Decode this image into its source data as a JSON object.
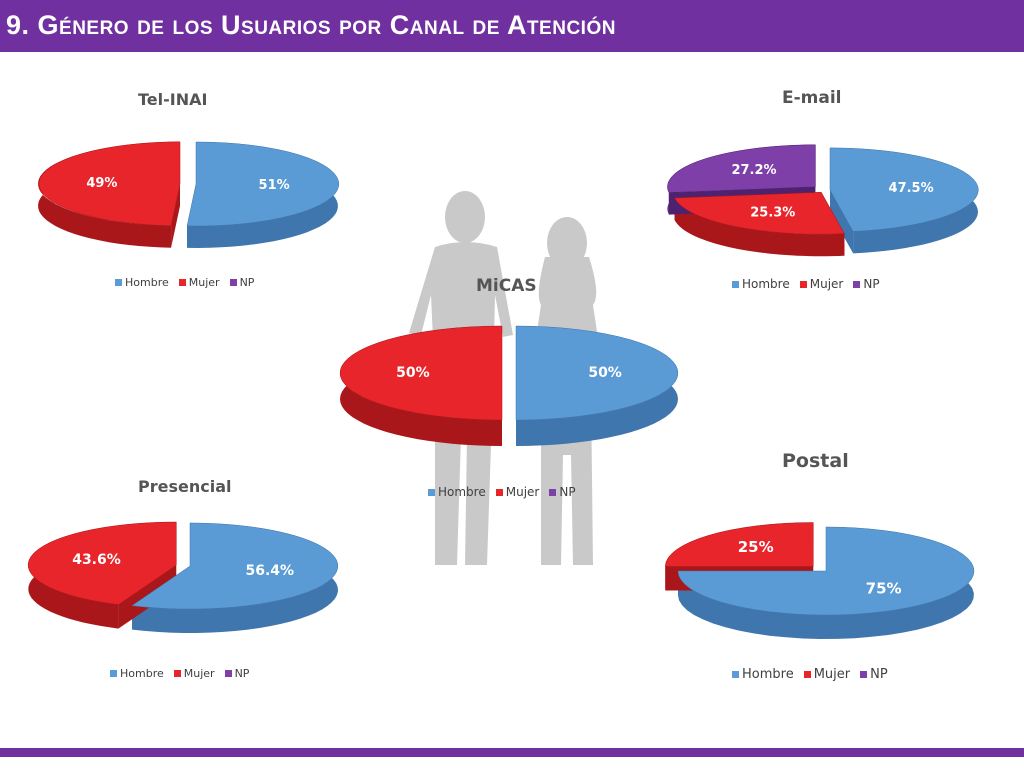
{
  "header": {
    "title": "9. Género de los Usuarios por Canal de Atención"
  },
  "colors": {
    "header": "#7030a0",
    "hombre": "#5b9bd5",
    "mujer": "#e8252b",
    "np": "#7e3fa8"
  },
  "legend_labels": [
    "Hombre",
    "Mujer",
    "NP"
  ],
  "chart_data": [
    {
      "id": "tel",
      "type": "pie",
      "title": "Tel-INAI",
      "categories": [
        "Hombre",
        "Mujer",
        "NP"
      ],
      "values": [
        51,
        49,
        0
      ],
      "labels": [
        "51%",
        "49%",
        ""
      ]
    },
    {
      "id": "email",
      "type": "pie",
      "title": "E-mail",
      "categories": [
        "Hombre",
        "Mujer",
        "NP"
      ],
      "values": [
        47.5,
        25.3,
        27.2
      ],
      "labels": [
        "47.5%",
        "25.3%",
        "27.2%"
      ]
    },
    {
      "id": "micas",
      "type": "pie",
      "title": "MiCAS",
      "categories": [
        "Hombre",
        "Mujer",
        "NP"
      ],
      "values": [
        50,
        50,
        0
      ],
      "labels": [
        "50%",
        "50%",
        ""
      ]
    },
    {
      "id": "presencial",
      "type": "pie",
      "title": "Presencial",
      "categories": [
        "Hombre",
        "Mujer",
        "NP"
      ],
      "values": [
        56.4,
        43.6,
        0
      ],
      "labels": [
        "56.4%",
        "43.6%",
        ""
      ]
    },
    {
      "id": "postal",
      "type": "pie",
      "title": "Postal",
      "categories": [
        "Hombre",
        "Mujer",
        "NP"
      ],
      "values": [
        75,
        25,
        0
      ],
      "labels": [
        "75%",
        "25%",
        ""
      ]
    }
  ]
}
